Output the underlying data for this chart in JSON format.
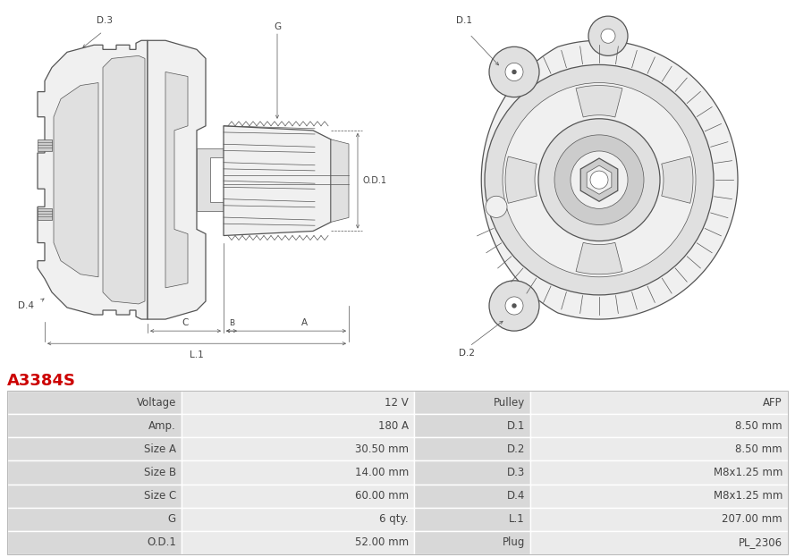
{
  "title": "A3384S",
  "title_color": "#cc0000",
  "bg_color": "#ffffff",
  "table_rows": [
    [
      "Voltage",
      "12 V",
      "Pulley",
      "AFP"
    ],
    [
      "Amp.",
      "180 A",
      "D.1",
      "8.50 mm"
    ],
    [
      "Size A",
      "30.50 mm",
      "D.2",
      "8.50 mm"
    ],
    [
      "Size B",
      "14.00 mm",
      "D.3",
      "M8x1.25 mm"
    ],
    [
      "Size C",
      "60.00 mm",
      "D.4",
      "M8x1.25 mm"
    ],
    [
      "G",
      "6 qty.",
      "L.1",
      "207.00 mm"
    ],
    [
      "O.D.1",
      "52.00 mm",
      "Plug",
      "PL_2306"
    ]
  ],
  "lc": "#555555",
  "lw_main": 0.9,
  "lw_thin": 0.5,
  "fill_light": "#f0f0f0",
  "fill_mid": "#e0e0e0",
  "fill_dark": "#cccccc"
}
